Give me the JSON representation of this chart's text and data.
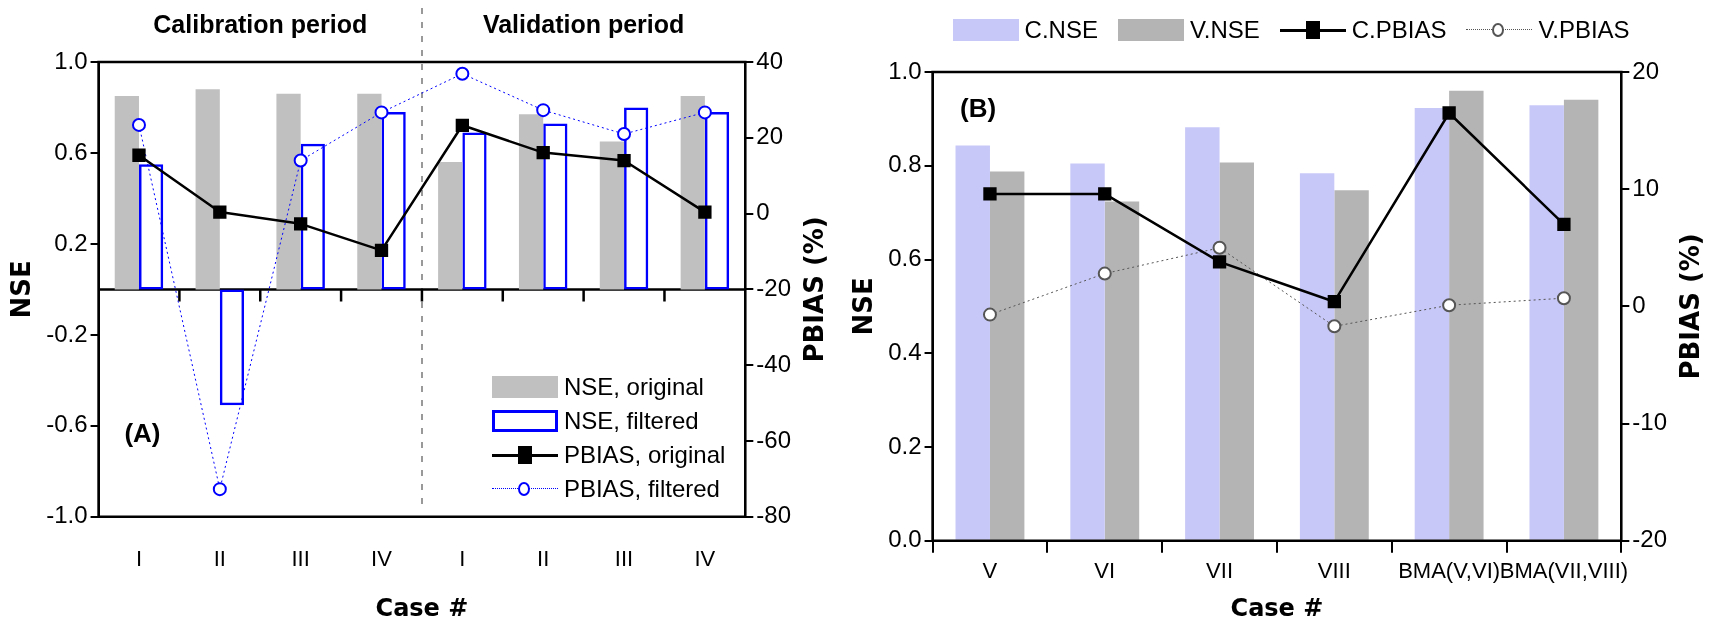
{
  "chart_data": [
    {
      "type": "bar",
      "categories": [
        "I",
        "II",
        "III",
        "IV",
        "I",
        "II",
        "III",
        "IV"
      ],
      "xlabel": "Case #",
      "ylabel": "NSE",
      "y2label": "PBIAS (%)",
      "annotations": [
        "Calibration period",
        "Validation period",
        "(A)"
      ],
      "ylim": [
        -1,
        1
      ],
      "yticks": [
        {
          "value": 1,
          "label": "1.0"
        },
        0.6,
        0.2,
        -0.2,
        -0.6,
        {
          "value": -1,
          "label": "-1.0"
        }
      ],
      "y2lim": [
        -80,
        40
      ],
      "y2ticks": [
        40,
        20,
        0,
        -20,
        -40,
        -60,
        -80
      ],
      "legend": "bottom right",
      "series": [
        {
          "name": "NSE, original",
          "color": "#c0c0c0",
          "values": [
            0.85,
            0.88,
            0.86,
            0.86,
            0.56,
            0.77,
            0.65,
            0.85
          ]
        },
        {
          "name": "NSE, filtered",
          "color": "#0000ff",
          "values": [
            0.55,
            -0.51,
            0.64,
            0.78,
            0.69,
            0.73,
            0.8,
            0.78
          ]
        },
        {
          "name": "PBIAS, original",
          "type": "line",
          "axis": "y2",
          "color": "#000000",
          "marker": "square",
          "line_style": "solid",
          "values": [
            15.4,
            0.4,
            -2.7,
            -9.7,
            23.3,
            16.1,
            14,
            0.4
          ]
        },
        {
          "name": "PBIAS, filtered",
          "type": "line",
          "axis": "y2",
          "color": "#0000ff",
          "marker": "circle",
          "line_style": "dotted",
          "values": [
            23.4,
            -72.7,
            14,
            26.7,
            36.9,
            27.3,
            21,
            26.7
          ]
        }
      ]
    },
    {
      "type": "bar",
      "categories": [
        "V",
        "VI",
        "VII",
        "VIII",
        "BMA(V,VI)",
        "BMA(VII,VIII)"
      ],
      "xlabel": "Case #",
      "ylabel": "NSE",
      "y2label": "PBIAS (%)",
      "annotations": [
        "(B)"
      ],
      "ylim": [
        0,
        1
      ],
      "yticks": [
        {
          "value": 0,
          "label": "0.0"
        },
        0.2,
        0.4,
        0.6,
        0.8,
        {
          "value": 1,
          "label": "1.0"
        }
      ],
      "y2lim": [
        -20,
        20
      ],
      "y2ticks": [
        -20,
        -10,
        0,
        10,
        20
      ],
      "grid": false,
      "legend": "top",
      "series": [
        {
          "name": "C.NSE",
          "color": "#c8c8f8",
          "values": [
            0.843,
            0.805,
            0.882,
            0.784,
            0.923,
            0.929
          ]
        },
        {
          "name": "V.NSE",
          "color": "#b4b4b4",
          "values": [
            0.788,
            0.724,
            0.807,
            0.748,
            0.96,
            0.941
          ]
        },
        {
          "name": "C.PBIAS",
          "type": "line",
          "axis": "y2",
          "color": "#000000",
          "marker": "square",
          "line_style": "solid",
          "values": [
            9.6,
            9.6,
            3.8,
            0.4,
            16.5,
            7
          ]
        },
        {
          "name": "V.PBIAS",
          "type": "line",
          "axis": "y2",
          "color": "#555555",
          "marker": "circle",
          "line_style": "dotted",
          "values": [
            -0.7,
            2.8,
            5,
            -1.7,
            0.1,
            0.7
          ]
        }
      ]
    }
  ]
}
